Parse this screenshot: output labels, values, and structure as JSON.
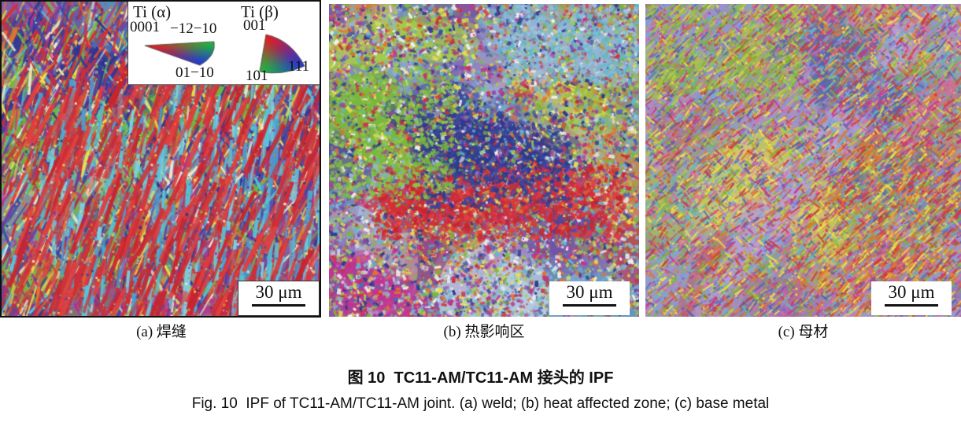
{
  "figure": {
    "caption_zh": "图 10  TC11-AM/TC11-AM 接头的 IPF",
    "caption_en": "Fig. 10  IPF of TC11-AM/TC11-AM joint. (a) weld; (b) heat affected zone; (c) base metal"
  },
  "legend": {
    "alpha": {
      "title": "Ti (α)",
      "corner_top_left": "0001",
      "corner_top_right": "−12−10",
      "corner_bottom": "01−10"
    },
    "beta": {
      "title": "Ti (β)",
      "corner_top": "001",
      "corner_bottom_left": "101",
      "corner_bottom_right": "111"
    },
    "vertex_colors": {
      "red": "#e11e22",
      "green": "#23b43c",
      "blue": "#2338d2"
    }
  },
  "panels": [
    {
      "id": "a",
      "label": "(a) 焊缝",
      "label_en": "weld",
      "scale_bar": "30 μm",
      "background": "#4a4f9e",
      "palette": [
        "#d02f35",
        "#3c46a8",
        "#2e3490",
        "#6a3fa0",
        "#b23390",
        "#6fb743",
        "#56c3d8",
        "#e07a2e",
        "#ece04e",
        "#f0ead0"
      ]
    },
    {
      "id": "b",
      "label": "(b) 热影响区",
      "label_en": "heat affected zone",
      "scale_bar": "30 μm",
      "background": "#6a6fb2",
      "palette": [
        "#7ab83e",
        "#a8cc4a",
        "#d22f3a",
        "#c23390",
        "#2e3a8e",
        "#5864b2",
        "#8fb6d8",
        "#62b8cc",
        "#e0762e",
        "#ece04e",
        "#8a4fa8",
        "#f0f0f0"
      ]
    },
    {
      "id": "c",
      "label": "(c) 母材",
      "label_en": "base metal",
      "scale_bar": "30 μm",
      "background": "#a892c2",
      "palette": [
        "#c9388e",
        "#7ab33e",
        "#b9cc3c",
        "#e0762e",
        "#cf3a3a",
        "#5864ae",
        "#8c92d8",
        "#62b8cc",
        "#e06aa8",
        "#ece04e"
      ]
    }
  ]
}
